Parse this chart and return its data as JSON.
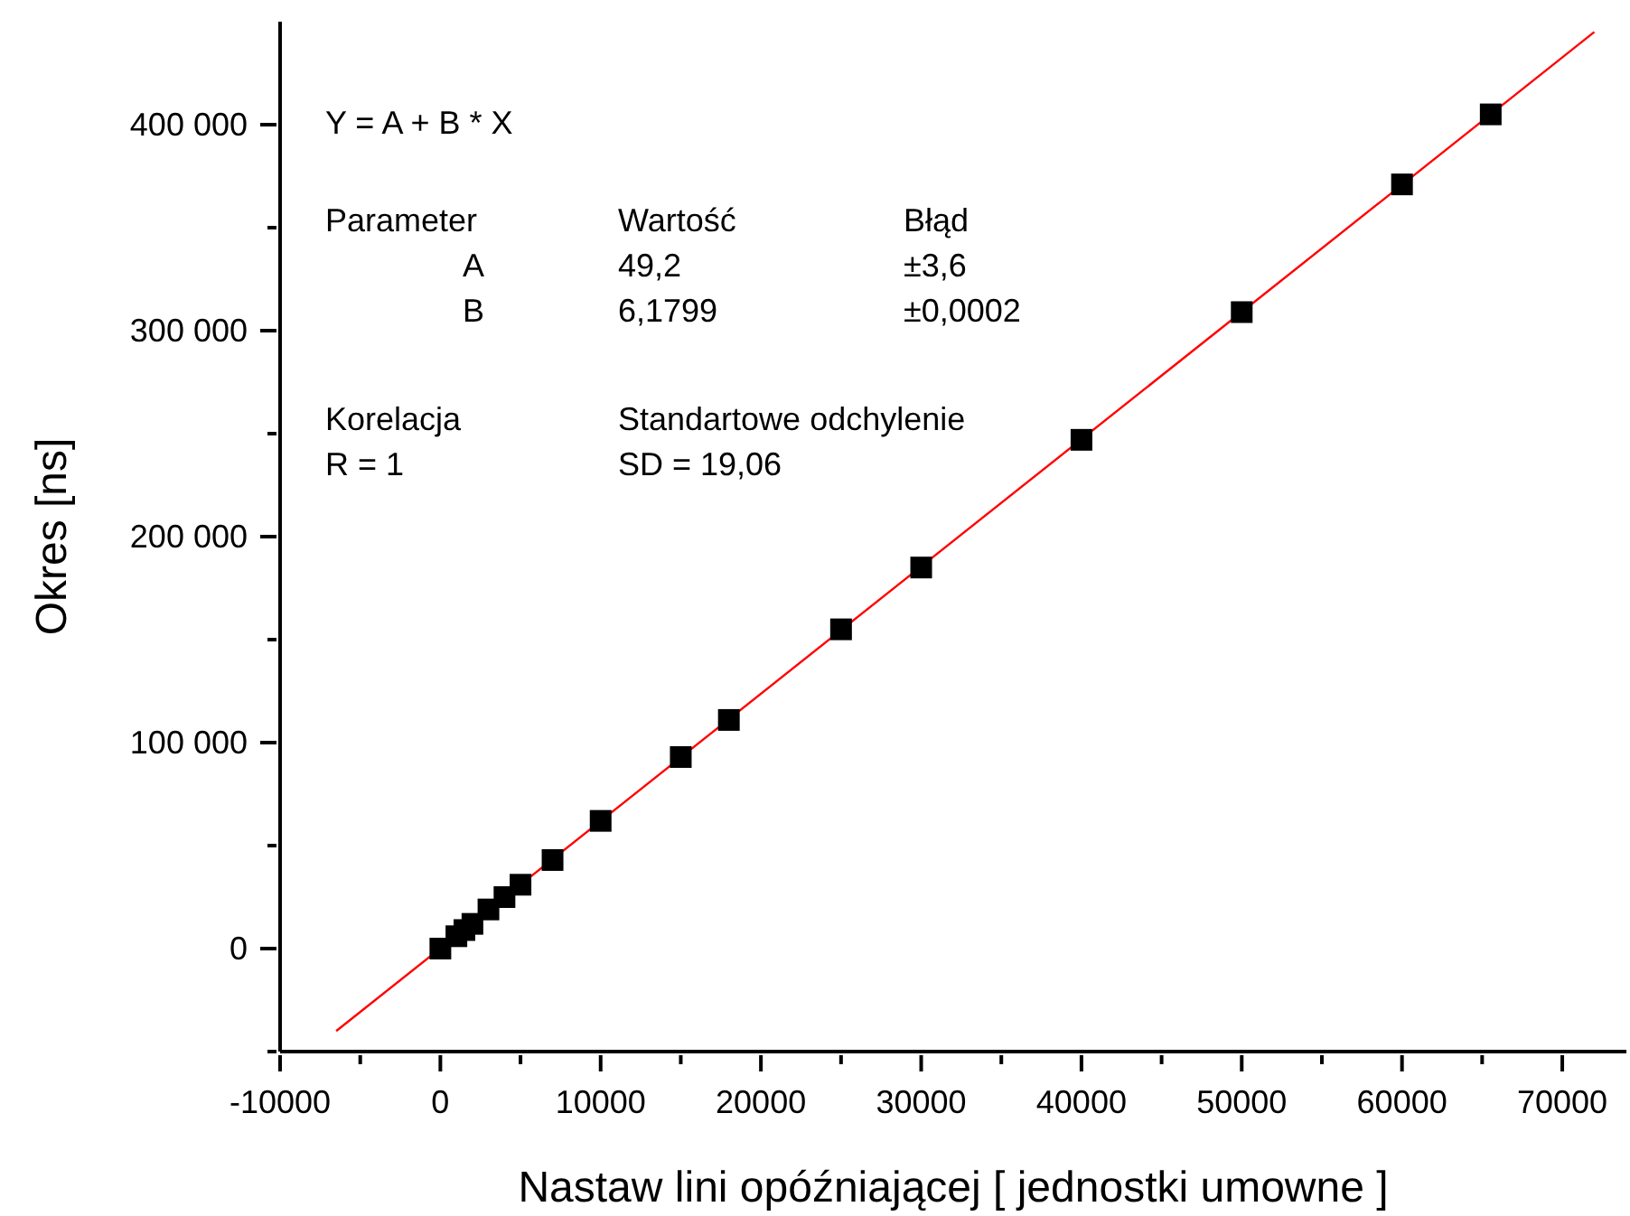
{
  "chart_data": {
    "type": "scatter",
    "xlabel": "Nastaw lini opóźniającej [ jednostki umowne ]",
    "ylabel": "Okres [ns]",
    "xlim": [
      -10000,
      74000
    ],
    "xticks": [
      -10000,
      {
        "value": -5000,
        "label": null
      },
      0,
      {
        "value": 5000,
        "label": null
      },
      10000,
      {
        "value": 15000,
        "label": null
      },
      20000,
      {
        "value": 25000,
        "label": null
      },
      30000,
      {
        "value": 35000,
        "label": null
      },
      40000,
      {
        "value": 45000,
        "label": null
      },
      50000,
      {
        "value": 55000,
        "label": null
      },
      60000,
      {
        "value": 65000,
        "label": null
      },
      70000
    ],
    "ylim": [
      -50000,
      450000
    ],
    "yticks": [
      {
        "value": -50000,
        "label": null
      },
      0,
      {
        "value": 50000,
        "label": null
      },
      {
        "value": 100000,
        "label": "100 000"
      },
      {
        "value": 150000,
        "label": null
      },
      {
        "value": 200000,
        "label": "200 000"
      },
      {
        "value": 250000,
        "label": null
      },
      {
        "value": 300000,
        "label": "300 000"
      },
      {
        "value": 350000,
        "label": null
      },
      {
        "value": 400000,
        "label": "400 000"
      }
    ],
    "annotations": [
      "Y = A + B * X",
      "Parameter",
      "Wartość",
      "Błąd",
      "A",
      "49,2",
      "±3,6",
      "B",
      "6,1799",
      "±0,0002",
      "Korelacja",
      "Standartowe odchylenie",
      "R = 1",
      "SD = 19,06"
    ],
    "series": [
      {
        "color": "#000000",
        "marker": "square",
        "x": [
          0,
          1000,
          1500,
          2000,
          3000,
          4000,
          5000,
          7000,
          10000,
          15000,
          18000,
          25000,
          30000,
          40000,
          50000,
          60000,
          65535
        ],
        "values": [
          0,
          6000,
          9000,
          12000,
          19000,
          25000,
          31000,
          43000,
          62000,
          93000,
          111000,
          155000,
          185000,
          247000,
          309000,
          371000,
          405000
        ]
      },
      {
        "type": "line",
        "color": "#ff0000",
        "marker": "none",
        "line_style": "solid",
        "x": [
          -6500,
          72000
        ],
        "values": [
          -40000,
          445000
        ]
      }
    ]
  }
}
